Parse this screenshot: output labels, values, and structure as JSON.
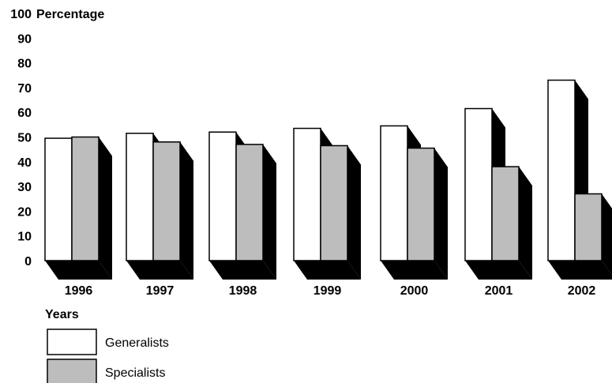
{
  "chart_data": {
    "type": "bar",
    "ylabel": "Percentage",
    "xlabel": "Years",
    "categories": [
      "1996",
      "1997",
      "1998",
      "1999",
      "2000",
      "2001",
      "2002"
    ],
    "series": [
      {
        "name": "Generalists",
        "values": [
          49.5,
          51.5,
          52,
          53.5,
          54.5,
          61.5,
          73
        ],
        "color": "#ffffff"
      },
      {
        "name": "Specialists",
        "values": [
          50,
          48,
          47,
          46.5,
          45.5,
          38,
          27
        ],
        "color": "#bdbdbd"
      }
    ],
    "ylim": [
      0,
      100
    ],
    "yticks": [
      0,
      10,
      20,
      30,
      40,
      50,
      60,
      70,
      80,
      90,
      100
    ],
    "style": "3d-shadow",
    "grid": false,
    "legend_position": "bottom-left"
  }
}
